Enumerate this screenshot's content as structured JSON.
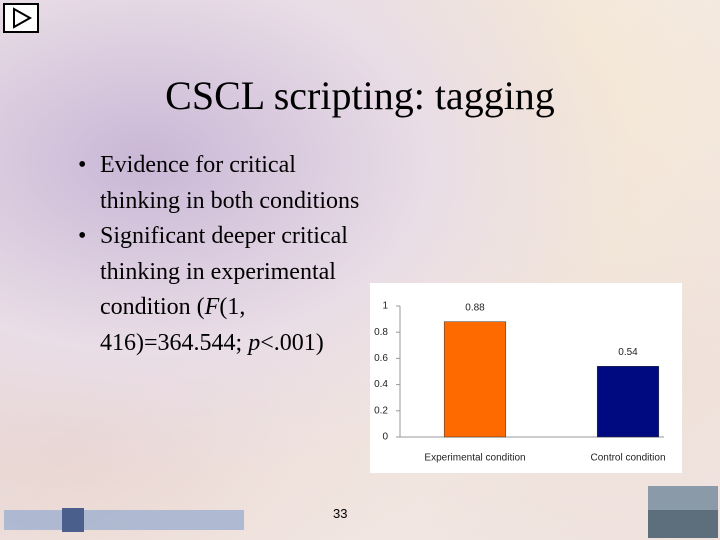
{
  "slide": {
    "title": "CSCL scripting: tagging",
    "bullets": [
      "Evidence for critical thinking in both conditions",
      [
        "Significant deeper critical thinking in experimental condition (",
        "F",
        "(1, 416)=364.544; ",
        "p",
        "<.001)"
      ]
    ],
    "page_number": "33"
  },
  "chart_data": {
    "type": "bar",
    "categories": [
      "Experimental condition",
      "Control condition"
    ],
    "values": [
      0.88,
      0.54
    ],
    "colors": [
      "#ff6a00",
      "#000a80"
    ],
    "ylim": [
      0,
      1
    ],
    "yticks": [
      0,
      0.2,
      0.4,
      0.6,
      0.8,
      1
    ],
    "grid": false
  }
}
